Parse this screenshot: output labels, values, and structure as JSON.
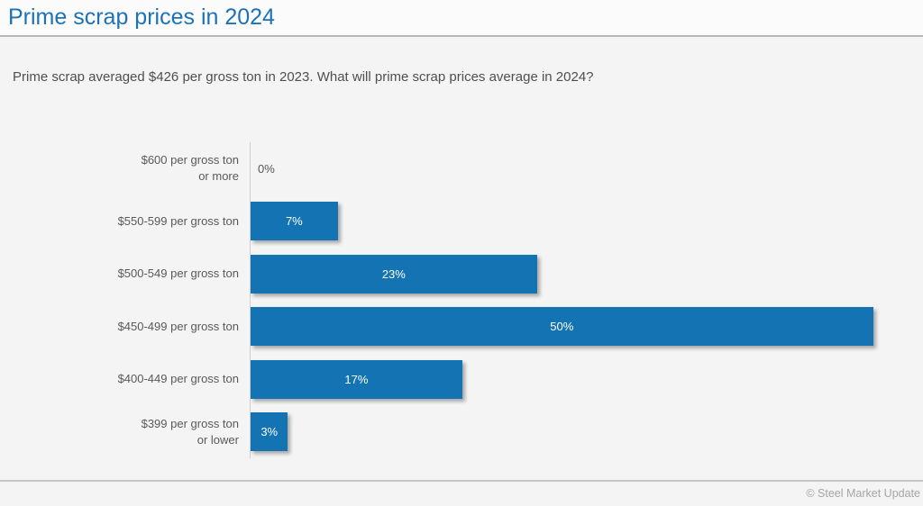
{
  "header": {
    "title": "Prime scrap prices in 2024",
    "subtitle": "Prime scrap averaged $426 per gross ton in 2023. What will prime scrap prices average in 2024?"
  },
  "chart_data": {
    "type": "bar",
    "orientation": "horizontal",
    "title": "Prime scrap prices in 2024",
    "question": "Prime scrap averaged $426 per gross ton in 2023. What will prime scrap prices average in 2024?",
    "categories": [
      "$600 per gross ton\nor more",
      "$550-599 per gross ton",
      "$500-549 per gross ton",
      "$450-499 per gross ton",
      "$400-449 per gross ton",
      "$399 per gross ton\nor lower"
    ],
    "values": [
      0,
      7,
      23,
      50,
      17,
      3
    ],
    "value_labels": [
      "0%",
      "7%",
      "23%",
      "50%",
      "17%",
      "3%"
    ],
    "value_unit": "%",
    "axis_max": 53,
    "grid": false,
    "legend": false,
    "bar_color": "#1473b2",
    "value_label_color_inside": "#ffffff",
    "value_label_color_outside": "#555555"
  },
  "footer": {
    "copyright": "© Steel Market Update"
  },
  "colors": {
    "title_accent": "#1b72b8",
    "bar": "#1473b2",
    "background": "#f4f4f4"
  }
}
